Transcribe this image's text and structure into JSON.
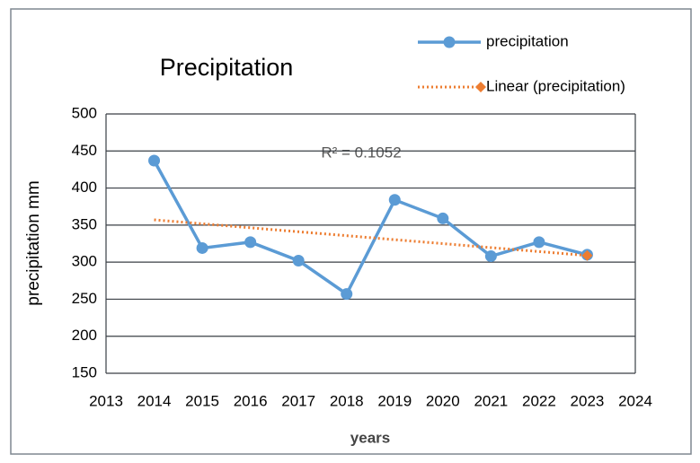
{
  "chart_data": {
    "type": "line",
    "title": "Precipitation",
    "x_label": "years",
    "y_label": "precipitation mm",
    "annotation": "R² = 0.1052",
    "x": [
      2014,
      2015,
      2016,
      2017,
      2018,
      2019,
      2020,
      2021,
      2022,
      2023
    ],
    "series": [
      {
        "name": "precipitation",
        "color": "#5b9bd5",
        "values": [
          437,
          319,
          327,
          302,
          257,
          384,
          359,
          308,
          327,
          310
        ]
      },
      {
        "name": "Linear (precipitation)",
        "color": "#ed7d31",
        "dotted": true,
        "values": [
          357.1,
          351.8,
          346.4,
          341.0,
          335.7,
          330.3,
          325.0,
          319.6,
          314.3,
          308.9
        ]
      }
    ],
    "xlim": [
      2013,
      2024
    ],
    "xticks": [
      2013,
      2014,
      2015,
      2016,
      2017,
      2018,
      2019,
      2020,
      2021,
      2022,
      2023,
      2024
    ],
    "ylim": [
      150,
      500
    ],
    "yticks": [
      150,
      200,
      250,
      300,
      350,
      400,
      450,
      500
    ],
    "grid": true,
    "legend": "top-right"
  }
}
